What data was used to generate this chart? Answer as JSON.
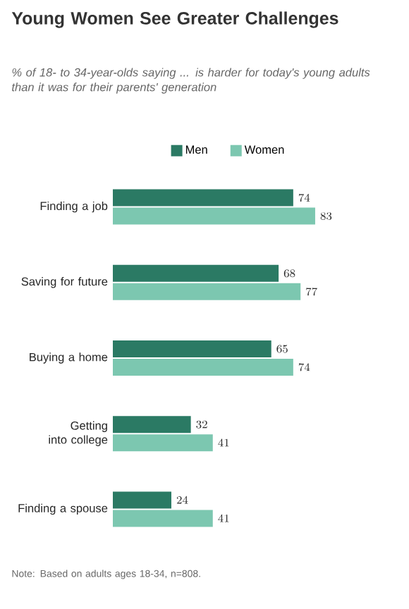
{
  "chart_data": {
    "type": "bar",
    "orientation": "horizontal",
    "title": "Young Women See Greater Challenges",
    "subtitle": "% of 18- to 34-year-olds saying ... is harder for today's young adults than it was for their parents' generation",
    "categories": [
      "Finding a job",
      "Saving for future",
      "Buying a home",
      "Getting into college",
      "Finding a spouse"
    ],
    "series": [
      {
        "name": "Men",
        "color": "#2b7a64",
        "values": [
          74,
          68,
          65,
          32,
          24
        ]
      },
      {
        "name": "Women",
        "color": "#7cc7b0",
        "values": [
          83,
          77,
          74,
          41,
          41
        ]
      }
    ],
    "data_labels": true,
    "legend": "top",
    "annotations": [
      "Note: Based on adults ages 18-34, n=808."
    ]
  }
}
